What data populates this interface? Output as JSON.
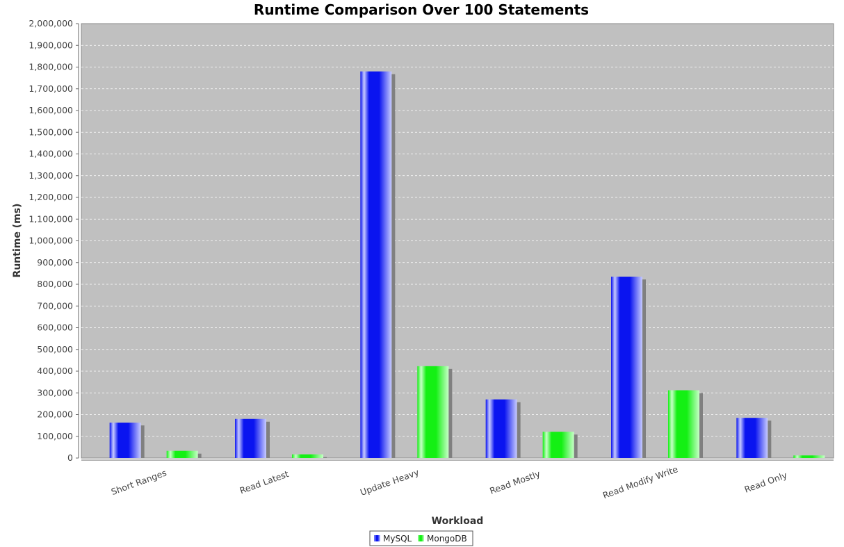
{
  "chart_data": {
    "type": "bar",
    "title": "Runtime Comparison Over 100 Statements",
    "xlabel": "Workload",
    "ylabel": "Runtime (ms)",
    "categories": [
      "Short Ranges",
      "Read Latest",
      "Update Heavy",
      "Read Mostly",
      "Read Modify Write",
      "Read Only"
    ],
    "series": [
      {
        "name": "MySQL",
        "values": [
          163000,
          180000,
          1780000,
          270000,
          835000,
          185000
        ],
        "color": "#0a14f0"
      },
      {
        "name": "MongoDB",
        "values": [
          33000,
          17000,
          423000,
          121000,
          312000,
          12000
        ],
        "color": "#14f014"
      }
    ],
    "ylim": [
      0,
      2000000
    ],
    "yticks": [
      "0",
      "100,000",
      "200,000",
      "300,000",
      "400,000",
      "500,000",
      "600,000",
      "700,000",
      "800,000",
      "900,000",
      "1,000,000",
      "1,100,000",
      "1,200,000",
      "1,300,000",
      "1,400,000",
      "1,500,000",
      "1,600,000",
      "1,700,000",
      "1,800,000",
      "1,900,000",
      "2,000,000"
    ],
    "grid": true,
    "legend_position": "bottom",
    "plot_background": "#c0c0c0"
  }
}
